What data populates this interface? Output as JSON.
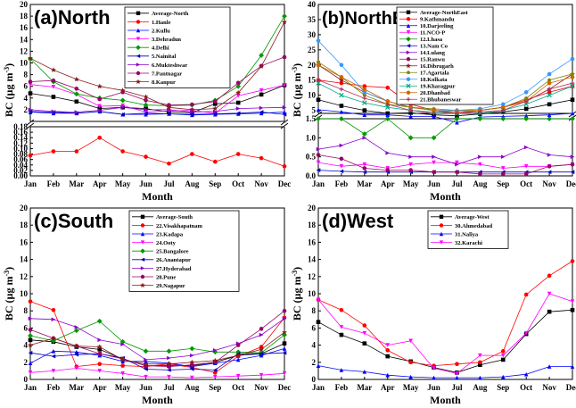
{
  "months": [
    "Jan",
    "Feb",
    "Mar",
    "Apr",
    "May",
    "Jun",
    "Jul",
    "Aug",
    "Sep",
    "Oct",
    "Nov",
    "Dec"
  ],
  "chart_data": [
    {
      "type": "line",
      "title": "(a)North",
      "xlabel": "Month",
      "ylabel": "BC (µg m",
      "ylabel_sup": "-3",
      "ylabel_close": ")",
      "broken_axis": true,
      "upper": {
        "ylim": [
          0,
          20
        ],
        "ticks": [
          "2",
          "4",
          "6",
          "8",
          "10",
          "12",
          "14",
          "16",
          "18",
          "20"
        ]
      },
      "lower": {
        "ylim": [
          0,
          0.18
        ],
        "ticks": [
          "0.00",
          "0.02",
          "0.04",
          "0.06",
          "0.08",
          "0.10",
          "0.12",
          "0.14",
          "0.16",
          "0.18"
        ]
      },
      "series": [
        {
          "name": "Average-North",
          "color": "#000000",
          "marker": "square",
          "segment": "upper",
          "values": [
            4.8,
            4.2,
            3.4,
            2.2,
            2.4,
            2.2,
            1.6,
            1.5,
            3.0,
            3.2,
            4.6,
            6.2
          ]
        },
        {
          "name": "1.Hanle",
          "color": "#ff0000",
          "marker": "circle",
          "segment": "lower",
          "values": [
            0.075,
            0.09,
            0.09,
            0.14,
            0.09,
            0.07,
            0.045,
            0.08,
            0.052,
            0.08,
            0.065,
            0.035
          ]
        },
        {
          "name": "2.Kullu",
          "color": "#0000ff",
          "marker": "triangle-up",
          "segment": "upper",
          "values": [
            1.6,
            1.4,
            1.4,
            1.7,
            1.2,
            1.2,
            1.3,
            1.1,
            1.2,
            1.3,
            1.4,
            1.6
          ]
        },
        {
          "name": "3.Dehradun",
          "color": "#ff00ff",
          "marker": "triangle-down",
          "segment": "upper",
          "values": [
            6.3,
            5.9,
            4.6,
            2.6,
            2.7,
            1.6,
            1.8,
            1.9,
            1.4,
            4.4,
            5.3,
            6.2
          ]
        },
        {
          "name": "4.Delhi",
          "color": "#009900",
          "marker": "diamond",
          "segment": "upper",
          "values": [
            10.7,
            6.8,
            4.7,
            4.0,
            3.6,
            2.8,
            2.7,
            2.8,
            3.6,
            6.0,
            11.3,
            18.0
          ]
        },
        {
          "name": "5.Nainital",
          "color": "#0000bb",
          "marker": "triangle-left",
          "segment": "upper",
          "values": [
            1.7,
            1.6,
            1.4,
            1.7,
            1.2,
            1.4,
            1.3,
            1.2,
            1.3,
            1.4,
            1.6,
            1.2
          ]
        },
        {
          "name": "6.Mukteshwar",
          "color": "#8800cc",
          "marker": "triangle-right",
          "segment": "upper",
          "values": [
            2.0,
            1.7,
            1.6,
            1.9,
            2.4,
            2.0,
            2.0,
            1.6,
            1.7,
            2.2,
            2.3,
            2.4
          ]
        },
        {
          "name": "7.Pantnagar",
          "color": "#990066",
          "marker": "circle",
          "segment": "upper",
          "values": [
            6.8,
            7.0,
            5.6,
            3.8,
            5.0,
            3.6,
            2.8,
            2.9,
            3.4,
            6.6,
            9.5,
            11.0
          ]
        },
        {
          "name": "8.Kanpur",
          "color": "#8b1a1a",
          "marker": "star",
          "segment": "upper",
          "values": [
            10.8,
            8.8,
            7.2,
            6.0,
            5.3,
            4.2,
            2.4,
            2.0,
            2.2,
            4.9,
            9.4,
            17.0
          ]
        }
      ]
    },
    {
      "type": "line",
      "title": "(b)NorthEast",
      "xlabel": "Month",
      "ylabel": "BC (µg m",
      "ylabel_sup": "-3",
      "ylabel_close": ")",
      "broken_axis": true,
      "upper": {
        "ylim": [
          4,
          40
        ],
        "ticks": [
          "5",
          "10",
          "15",
          "20",
          "25",
          "30",
          "35",
          "40"
        ]
      },
      "lower": {
        "ylim": [
          0,
          1.5
        ],
        "ticks": [
          "0.0",
          "0.5",
          "1.0",
          "1.5"
        ]
      },
      "series": [
        {
          "name": "Average-NorthEast",
          "color": "#000000",
          "marker": "square",
          "segment": "upper",
          "values": [
            8.5,
            6.5,
            5.0,
            4.0,
            4.2,
            3.5,
            3.2,
            3.8,
            4.5,
            5.5,
            7.0,
            8.5
          ]
        },
        {
          "name": "9.Kathmandu",
          "color": "#ff0000",
          "marker": "circle",
          "segment": "upper",
          "values": [
            15.0,
            14.0,
            13.0,
            12.5,
            7.0,
            5.0,
            4.0,
            5.0,
            6.0,
            8.5,
            11.0,
            13.0
          ]
        },
        {
          "name": "10.Darjeeling",
          "color": "#0000ff",
          "marker": "triangle-up",
          "segment": "upper",
          "values": [
            5.2,
            4.5,
            3.5,
            3.5,
            3.0,
            3.0,
            1.0,
            2.8,
            3.0,
            3.2,
            3.5,
            4.0
          ]
        },
        {
          "name": "11.NCO-P",
          "color": "#ff00ff",
          "marker": "triangle-down",
          "segment": "lower",
          "values": [
            0.35,
            0.25,
            0.3,
            0.2,
            0.3,
            0.35,
            0.35,
            0.3,
            0.2,
            0.25,
            0.25,
            0.3
          ]
        },
        {
          "name": "12.Lhasa",
          "color": "#009900",
          "marker": "diamond",
          "segment": "mixed",
          "values": [
            1.5,
            1.5,
            1.1,
            1.5,
            1.0,
            1.0,
            1.5,
            1.5,
            1.5,
            1.5,
            1.5,
            1.5
          ]
        },
        {
          "name": "13.Nam Co",
          "color": "#0000bb",
          "marker": "triangle-left",
          "segment": "lower",
          "values": [
            0.15,
            0.12,
            0.1,
            0.1,
            0.1,
            0.1,
            0.1,
            0.1,
            0.1,
            0.1,
            0.1,
            0.1
          ]
        },
        {
          "name": "14.Lulang",
          "color": "#8800cc",
          "marker": "triangle-right",
          "segment": "lower",
          "values": [
            0.7,
            0.8,
            1.0,
            0.6,
            0.5,
            0.5,
            0.3,
            0.5,
            0.5,
            0.75,
            0.55,
            0.5
          ]
        },
        {
          "name": "15.Ranwu",
          "color": "#990066",
          "marker": "circle",
          "segment": "lower",
          "values": [
            0.55,
            0.45,
            0.2,
            0.15,
            0.15,
            0.1,
            0.1,
            0.05,
            0.05,
            0.05,
            0.25,
            0.3
          ]
        },
        {
          "name": "16.Dibrugarh",
          "color": "#8b1a1a",
          "marker": "star",
          "segment": "upper",
          "values": [
            20.0,
            15.0,
            11.0,
            8.0,
            6.0,
            5.0,
            4.5,
            5.0,
            6.0,
            8.0,
            12.0,
            17.0
          ]
        },
        {
          "name": "17.Agartala",
          "color": "#808000",
          "marker": "pentagon",
          "segment": "upper",
          "values": [
            21.0,
            16.0,
            10.0,
            7.0,
            6.0,
            5.5,
            5.0,
            5.0,
            6.0,
            9.0,
            15.0,
            17.0
          ]
        },
        {
          "name": "18.Kolkata",
          "color": "#3399ff",
          "marker": "circle",
          "segment": "upper",
          "values": [
            28.0,
            20.0,
            11.0,
            8.0,
            6.0,
            5.0,
            5.0,
            5.5,
            7.0,
            11.0,
            17.0,
            22.0
          ]
        },
        {
          "name": "19.Kharagpur",
          "color": "#00aa88",
          "marker": "cross",
          "segment": "upper",
          "values": [
            14.0,
            10.0,
            7.5,
            6.0,
            5.0,
            4.5,
            4.0,
            4.0,
            5.0,
            7.0,
            10.0,
            13.0
          ]
        },
        {
          "name": "20.Dhanbad",
          "color": "#cc6600",
          "marker": "circle",
          "segment": "upper",
          "values": [
            20.0,
            16.0,
            12.0,
            8.0,
            6.0,
            5.0,
            4.5,
            5.0,
            6.0,
            8.0,
            14.0,
            16.0
          ]
        },
        {
          "name": "21.Bhubaneswar",
          "color": "#b03060",
          "marker": "plus",
          "segment": "upper",
          "values": [
            15.0,
            12.0,
            9.0,
            7.0,
            5.0,
            4.0,
            4.0,
            4.5,
            5.0,
            8.0,
            12.0,
            14.0
          ]
        }
      ]
    },
    {
      "type": "line",
      "title": "(c)South",
      "xlabel": "Month",
      "ylabel": "BC (µg m",
      "ylabel_sup": "-3",
      "ylabel_close": ")",
      "broken_axis": false,
      "upper": {
        "ylim": [
          0,
          20
        ],
        "ticks": [
          "0",
          "2",
          "4",
          "6",
          "8",
          "10",
          "12",
          "14",
          "16",
          "18",
          "20"
        ]
      },
      "series": [
        {
          "name": "Average-South",
          "color": "#000000",
          "marker": "square",
          "segment": "upper",
          "values": [
            4.6,
            4.4,
            3.8,
            3.5,
            2.4,
            1.6,
            1.6,
            1.6,
            2.0,
            2.8,
            3.0,
            4.2
          ]
        },
        {
          "name": "22.Visakhapatnam",
          "color": "#ff0000",
          "marker": "circle",
          "segment": "upper",
          "values": [
            9.1,
            8.1,
            1.5,
            1.8,
            1.6,
            1.5,
            1.8,
            1.4,
            0.8,
            2.7,
            3.8,
            7.2
          ]
        },
        {
          "name": "23.Kadapa",
          "color": "#0000ff",
          "marker": "triangle-up",
          "segment": "upper",
          "values": [
            1.9,
            3.3,
            3.2,
            2.8,
            2.1,
            2.1,
            1.9,
            1.5,
            1.9,
            2.3,
            2.8,
            3.6
          ]
        },
        {
          "name": "24.Ooty",
          "color": "#ff00ff",
          "marker": "triangle-down",
          "segment": "upper",
          "values": [
            0.8,
            1.0,
            1.3,
            1.0,
            0.7,
            0.3,
            0.3,
            0.2,
            0.3,
            0.4,
            0.5,
            0.7
          ]
        },
        {
          "name": "25.Bangalore",
          "color": "#009900",
          "marker": "diamond",
          "segment": "upper",
          "values": [
            5.1,
            4.5,
            5.7,
            6.8,
            4.4,
            3.3,
            3.3,
            3.6,
            3.2,
            3.2,
            3.1,
            5.2
          ]
        },
        {
          "name": "26.Anantapur",
          "color": "#0000bb",
          "marker": "triangle-left",
          "segment": "upper",
          "values": [
            3.1,
            2.7,
            2.9,
            3.0,
            2.5,
            1.2,
            1.1,
            1.2,
            1.1,
            3.0,
            3.0,
            3.1
          ]
        },
        {
          "name": "27.Hyderabad",
          "color": "#8800cc",
          "marker": "triangle-right",
          "segment": "upper",
          "values": [
            7.1,
            7.0,
            6.1,
            4.6,
            4.1,
            2.3,
            2.5,
            2.8,
            3.4,
            4.2,
            5.2,
            7.1
          ]
        },
        {
          "name": "28.Pune",
          "color": "#990066",
          "marker": "circle",
          "segment": "upper",
          "values": [
            5.8,
            4.8,
            3.9,
            3.0,
            2.4,
            1.6,
            1.5,
            1.7,
            2.0,
            4.0,
            5.9,
            8.0
          ]
        },
        {
          "name": "29.Nagapur",
          "color": "#8b1a1a",
          "marker": "star",
          "segment": "upper",
          "values": [
            4.0,
            4.8,
            3.9,
            3.8,
            2.3,
            1.8,
            1.8,
            2.0,
            2.2,
            2.8,
            3.5,
            5.5
          ]
        }
      ]
    },
    {
      "type": "line",
      "title": "(d)West",
      "xlabel": "Month",
      "ylabel": "BC (µg m",
      "ylabel_sup": "-3",
      "ylabel_close": ")",
      "broken_axis": false,
      "upper": {
        "ylim": [
          0,
          20
        ],
        "ticks": [
          "0",
          "2",
          "4",
          "6",
          "8",
          "10",
          "12",
          "14",
          "16",
          "18",
          "20"
        ]
      },
      "series": [
        {
          "name": "Average-West",
          "color": "#000000",
          "marker": "square",
          "segment": "upper",
          "values": [
            6.7,
            5.2,
            4.2,
            2.7,
            2.1,
            1.4,
            0.8,
            1.7,
            2.3,
            5.3,
            7.9,
            8.1
          ]
        },
        {
          "name": "30.Ahmedabad",
          "color": "#ff0000",
          "marker": "circle",
          "segment": "upper",
          "values": [
            9.3,
            8.1,
            6.3,
            3.4,
            2.0,
            1.6,
            1.8,
            2.0,
            3.3,
            9.9,
            12.1,
            13.8
          ]
        },
        {
          "name": "31.Naliya",
          "color": "#0000ff",
          "marker": "triangle-up",
          "segment": "upper",
          "values": [
            1.6,
            1.1,
            0.9,
            0.5,
            0.3,
            0.2,
            0.2,
            0.2,
            0.3,
            0.6,
            1.5,
            1.5
          ]
        },
        {
          "name": "32.Karachi",
          "color": "#ff00ff",
          "marker": "triangle-down",
          "segment": "upper",
          "values": [
            9.3,
            6.1,
            5.4,
            4.0,
            4.5,
            1.3,
            0.7,
            2.8,
            2.8,
            5.4,
            10.0,
            9.1
          ]
        }
      ]
    }
  ]
}
